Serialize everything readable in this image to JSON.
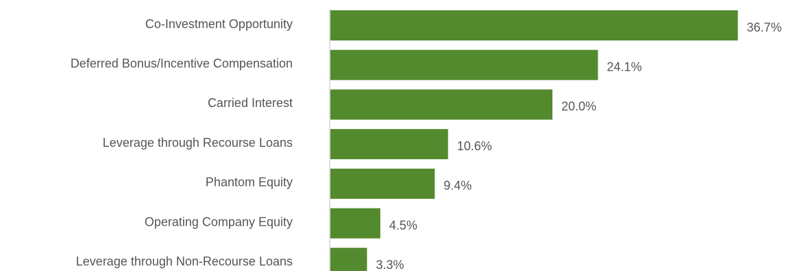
{
  "chart_data": {
    "type": "bar",
    "orientation": "horizontal",
    "categories": [
      "Co-Investment Opportunity",
      "Deferred Bonus/Incentive Compensation",
      "Carried Interest",
      "Leverage through Recourse Loans",
      "Phantom Equity",
      "Operating Company Equity",
      "Leverage through Non-Recourse Loans"
    ],
    "values": [
      36.7,
      24.1,
      20.0,
      10.6,
      9.4,
      4.5,
      3.3
    ],
    "value_labels": [
      "36.7%",
      "24.1%",
      "20.0%",
      "10.6%",
      "9.4%",
      "4.5%",
      "3.3%"
    ],
    "title": "",
    "xlabel": "",
    "ylabel": "",
    "xlim": [
      0,
      40
    ],
    "grid": false,
    "legend": "none",
    "bar_color": "#548A2E",
    "text_color": "#555555"
  }
}
